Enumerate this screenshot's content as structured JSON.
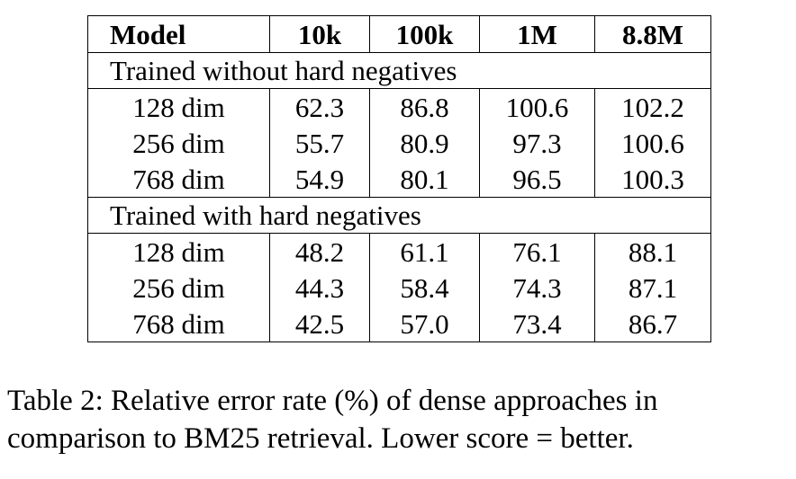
{
  "table": {
    "columns": [
      "Model",
      "10k",
      "100k",
      "1M",
      "8.8M"
    ],
    "groups": [
      {
        "title": "Trained without hard negatives",
        "rows": [
          {
            "model": "128 dim",
            "values": [
              "62.3",
              "86.8",
              "100.6",
              "102.2"
            ]
          },
          {
            "model": "256 dim",
            "values": [
              "55.7",
              "80.9",
              "97.3",
              "100.6"
            ]
          },
          {
            "model": "768 dim",
            "values": [
              "54.9",
              "80.1",
              "96.5",
              "100.3"
            ]
          }
        ]
      },
      {
        "title": "Trained with hard negatives",
        "rows": [
          {
            "model": "128 dim",
            "values": [
              "48.2",
              "61.1",
              "76.1",
              "88.1"
            ]
          },
          {
            "model": "256 dim",
            "values": [
              "44.3",
              "58.4",
              "74.3",
              "87.1"
            ]
          },
          {
            "model": "768 dim",
            "values": [
              "42.5",
              "57.0",
              "73.4",
              "86.7"
            ]
          }
        ]
      }
    ]
  },
  "caption": {
    "line1": "Table 2: Relative error rate (%) of dense approaches in",
    "line2": "comparison to BM25 retrieval. Lower score = better."
  }
}
